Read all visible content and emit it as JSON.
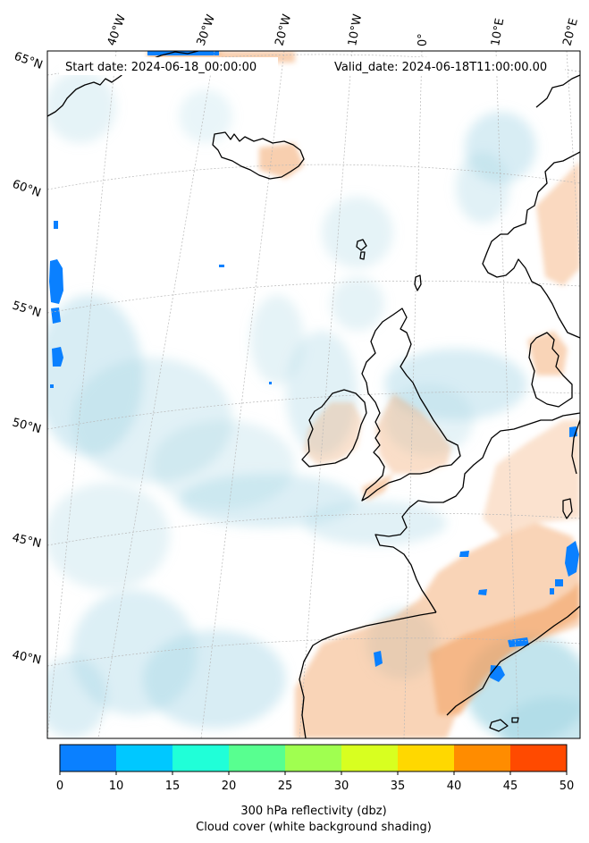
{
  "map": {
    "start_date": "Start date: 2024-06-18_00:00:00",
    "valid_date": "Valid_date: 2024-06-18T11:00:00.00",
    "lon_labels": [
      "40°W",
      "30°W",
      "20°W",
      "10°W",
      "0°",
      "10°E",
      "20°E"
    ],
    "lat_labels": [
      "65°N",
      "60°N",
      "55°N",
      "50°N",
      "45°N",
      "40°N"
    ]
  },
  "colorbar": {
    "ticks": [
      "0",
      "10",
      "15",
      "20",
      "25",
      "30",
      "35",
      "40",
      "45",
      "50"
    ],
    "colors": [
      "#0a80ff",
      "#00c8ff",
      "#20ffd8",
      "#58ff90",
      "#a0ff50",
      "#d8ff20",
      "#ffd800",
      "#ff8c00",
      "#ff4a00"
    ],
    "label_line1": "300 hPa reflectivity (dbz)",
    "label_line2": "Cloud cover (white background shading)"
  },
  "colors": {
    "cloud_shading": "#a8d8e6",
    "warm_shading": "#f2a060",
    "coastline": "#000000",
    "gridline": "#b8b8b8"
  }
}
